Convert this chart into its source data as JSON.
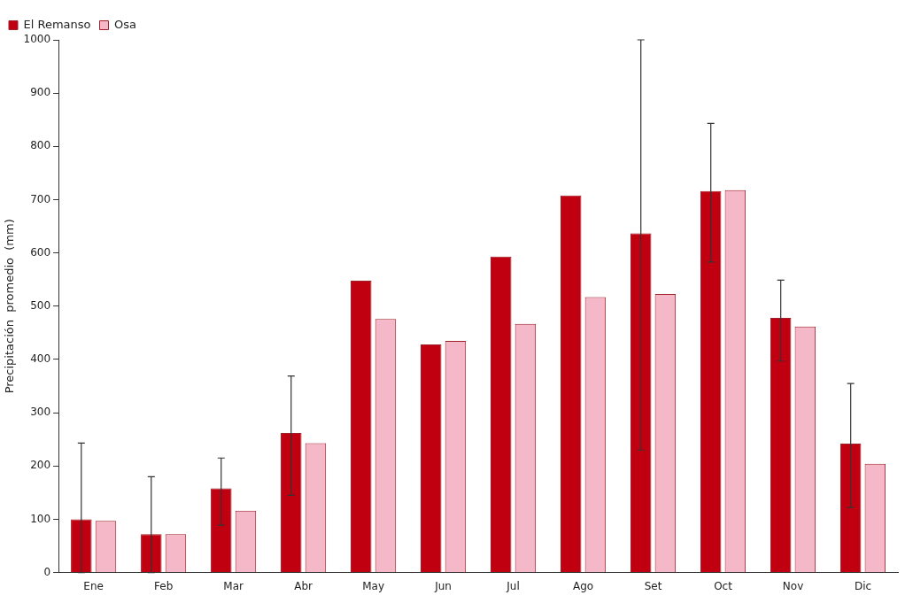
{
  "chart_data": {
    "type": "bar",
    "ylabel": "Precipitación  promedio  (mm)",
    "categories": [
      "Ene",
      "Feb",
      "Mar",
      "Abr",
      "May",
      "Jun",
      "Jul",
      "Ago",
      "Set",
      "Oct",
      "Nov",
      "Dic"
    ],
    "series": [
      {
        "name": "El Remanso",
        "color": "#c00010",
        "values": [
          100,
          72,
          158,
          262,
          548,
          428,
          593,
          708,
          637,
          716,
          478,
          242
        ],
        "errors": [
          [
            0,
            243
          ],
          [
            0,
            180
          ],
          [
            89,
            215
          ],
          [
            145,
            369
          ],
          null,
          null,
          null,
          null,
          [
            230,
            1000
          ],
          [
            583,
            843
          ],
          [
            397,
            549
          ],
          [
            122,
            355
          ]
        ]
      },
      {
        "name": "Osa",
        "color": "#f4b8c8",
        "values": [
          97,
          72,
          116,
          243,
          476,
          435,
          467,
          517,
          523,
          718,
          462,
          204
        ]
      }
    ],
    "ylim": [
      0,
      1000
    ],
    "yticks": [
      0,
      100,
      200,
      300,
      400,
      500,
      600,
      700,
      800,
      900,
      1000
    ],
    "grid": false,
    "legend": "top left"
  }
}
